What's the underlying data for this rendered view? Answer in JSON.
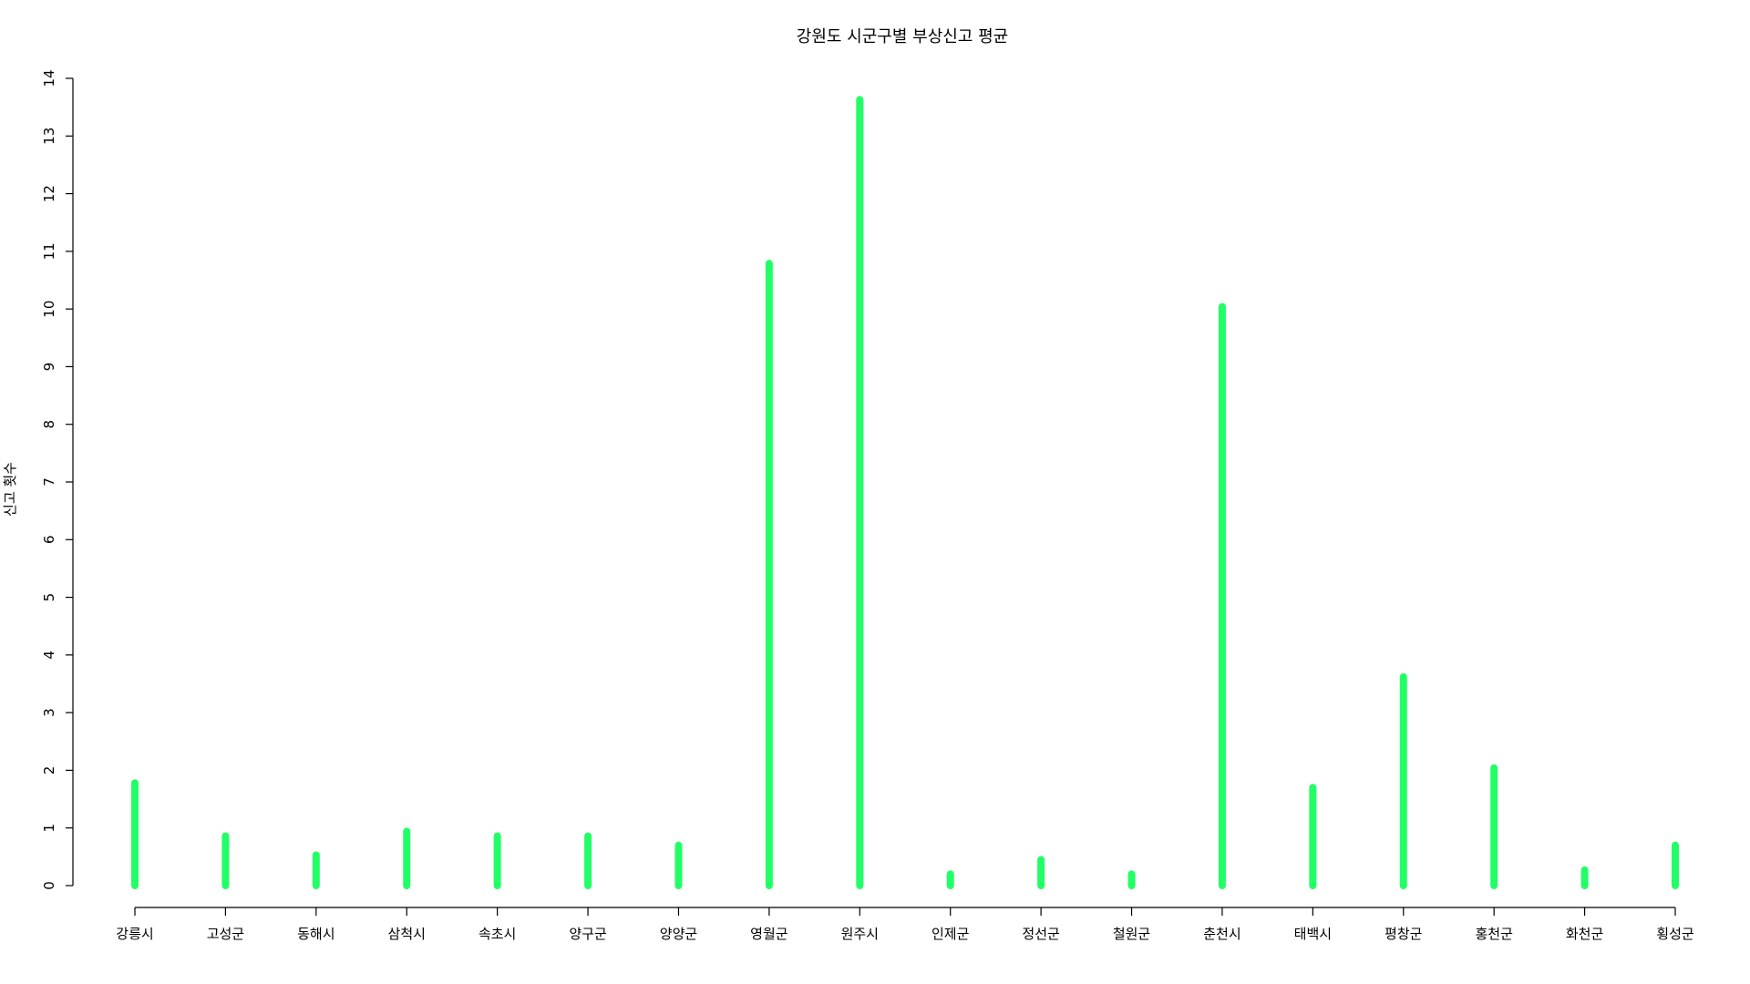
{
  "chart_data": {
    "type": "bar",
    "title": "강원도 시군구별 부상신고 평균",
    "xlabel": "",
    "ylabel": "신고 횟수",
    "categories": [
      "강릉시",
      "고성군",
      "동해시",
      "삼척시",
      "속초시",
      "양구군",
      "양양군",
      "영월군",
      "원주시",
      "인제군",
      "정선군",
      "철원군",
      "춘천시",
      "태백시",
      "평창군",
      "홍천군",
      "화천군",
      "횡성군"
    ],
    "values": [
      1.78,
      0.86,
      0.53,
      0.94,
      0.86,
      0.86,
      0.7,
      10.79,
      13.63,
      0.2,
      0.45,
      0.2,
      10.04,
      1.7,
      3.62,
      2.04,
      0.27,
      0.7
    ],
    "ylim": [
      0,
      14
    ],
    "yticks": [
      0,
      1,
      2,
      3,
      4,
      5,
      6,
      7,
      8,
      9,
      10,
      11,
      12,
      13,
      14
    ],
    "grid": false,
    "color": "#22ff66"
  }
}
